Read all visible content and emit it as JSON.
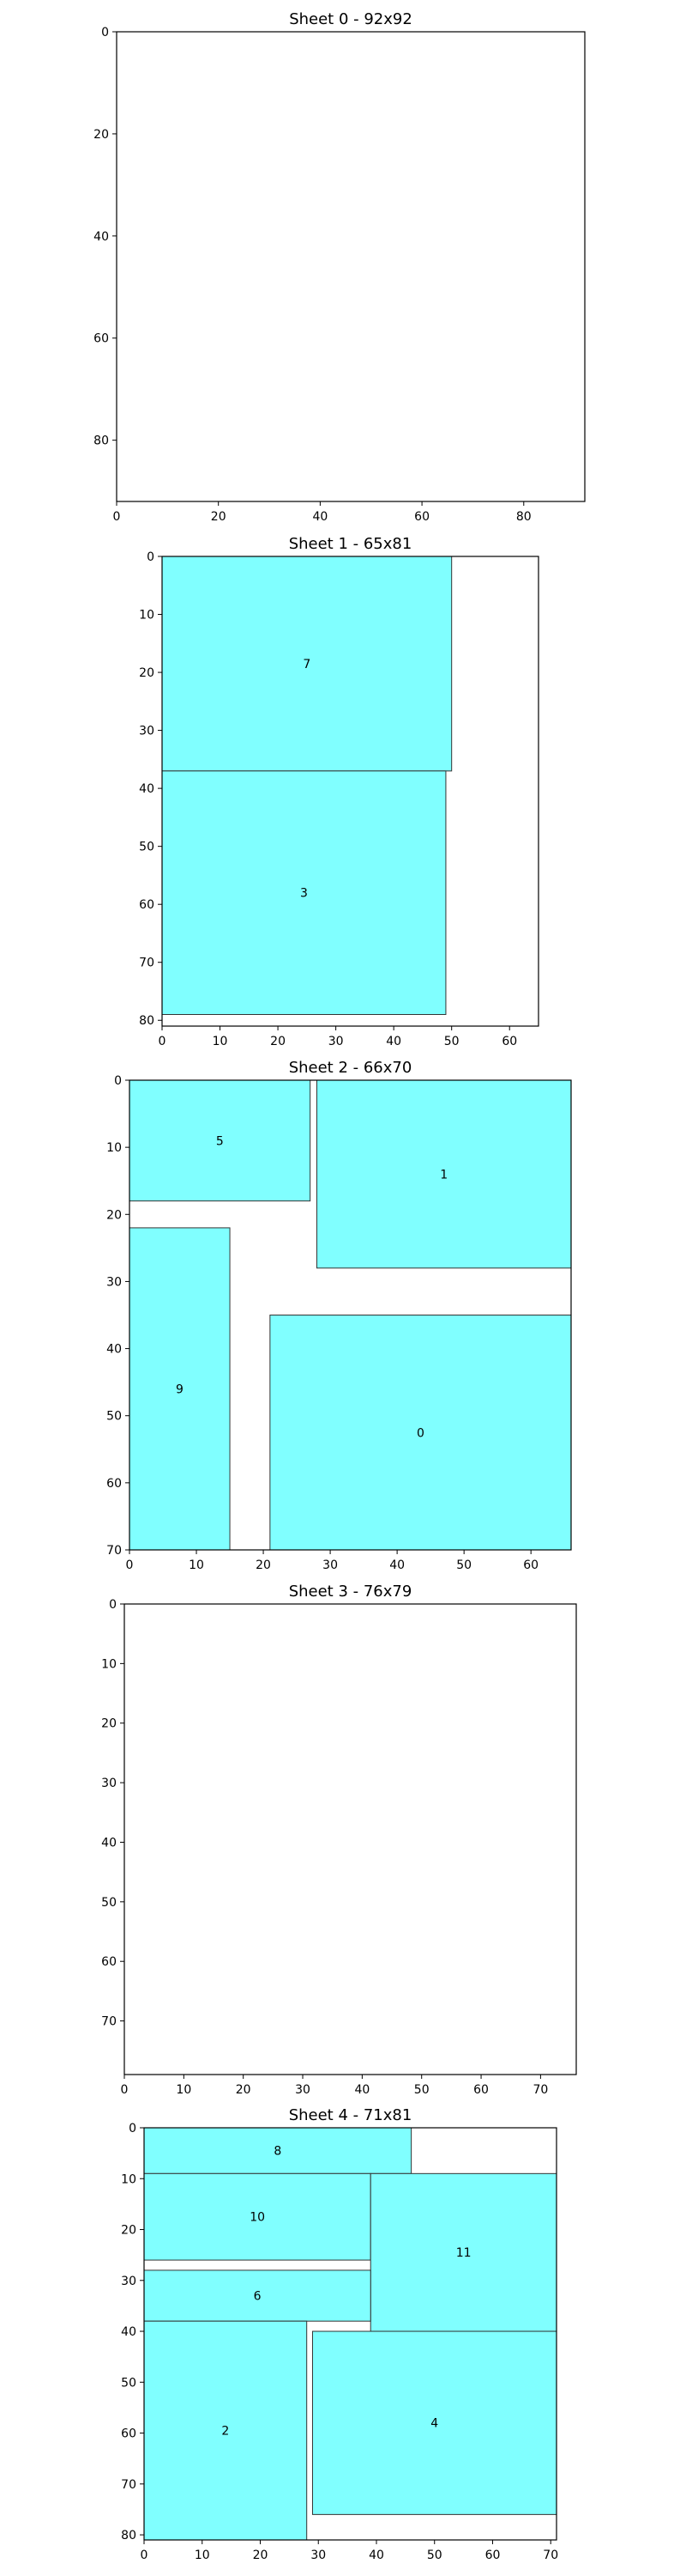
{
  "chart_data": [
    {
      "type": "rectangle-packing",
      "title": "Sheet 0 - 92x92",
      "xlim": [
        0,
        92
      ],
      "ylim": [
        0,
        92
      ],
      "y_inverted": true,
      "xticks": [
        0,
        20,
        40,
        60,
        80
      ],
      "yticks": [
        0,
        20,
        40,
        60,
        80
      ],
      "fill_color": "#80ffff",
      "pieces": []
    },
    {
      "type": "rectangle-packing",
      "title": "Sheet 1 - 65x81",
      "xlim": [
        0,
        65
      ],
      "ylim": [
        0,
        81
      ],
      "y_inverted": true,
      "xticks": [
        0,
        10,
        20,
        30,
        40,
        50,
        60
      ],
      "yticks": [
        0,
        10,
        20,
        30,
        40,
        50,
        60,
        70,
        80
      ],
      "fill_color": "#80ffff",
      "pieces": [
        {
          "label": "7",
          "x0": 0,
          "y0": 0,
          "x1": 50,
          "y1": 37
        },
        {
          "label": "3",
          "x0": 0,
          "y0": 37,
          "x1": 49,
          "y1": 79
        }
      ]
    },
    {
      "type": "rectangle-packing",
      "title": "Sheet 2 - 66x70",
      "xlim": [
        0,
        66
      ],
      "ylim": [
        0,
        70
      ],
      "y_inverted": true,
      "xticks": [
        0,
        10,
        20,
        30,
        40,
        50,
        60
      ],
      "yticks": [
        0,
        10,
        20,
        30,
        40,
        50,
        60,
        70
      ],
      "fill_color": "#80ffff",
      "pieces": [
        {
          "label": "5",
          "x0": 0,
          "y0": 0,
          "x1": 27,
          "y1": 18
        },
        {
          "label": "1",
          "x0": 28,
          "y0": 0,
          "x1": 66,
          "y1": 28
        },
        {
          "label": "9",
          "x0": 0,
          "y0": 22,
          "x1": 15,
          "y1": 70
        },
        {
          "label": "0",
          "x0": 21,
          "y0": 35,
          "x1": 66,
          "y1": 70
        }
      ]
    },
    {
      "type": "rectangle-packing",
      "title": "Sheet 3 - 76x79",
      "xlim": [
        0,
        76
      ],
      "ylim": [
        0,
        79
      ],
      "y_inverted": true,
      "xticks": [
        0,
        10,
        20,
        30,
        40,
        50,
        60,
        70
      ],
      "yticks": [
        0,
        10,
        20,
        30,
        40,
        50,
        60,
        70
      ],
      "fill_color": "#80ffff",
      "pieces": []
    },
    {
      "type": "rectangle-packing",
      "title": "Sheet 4 - 71x81",
      "xlim": [
        0,
        71
      ],
      "ylim": [
        0,
        81
      ],
      "y_inverted": true,
      "xticks": [
        0,
        10,
        20,
        30,
        40,
        50,
        60,
        70
      ],
      "yticks": [
        0,
        10,
        20,
        30,
        40,
        50,
        60,
        70,
        80
      ],
      "fill_color": "#80ffff",
      "pieces": [
        {
          "label": "8",
          "x0": 0,
          "y0": 0,
          "x1": 46,
          "y1": 9
        },
        {
          "label": "10",
          "x0": 0,
          "y0": 9,
          "x1": 39,
          "y1": 26
        },
        {
          "label": "11",
          "x0": 39,
          "y0": 9,
          "x1": 71,
          "y1": 40
        },
        {
          "label": "6",
          "x0": 0,
          "y0": 28,
          "x1": 39,
          "y1": 38
        },
        {
          "label": "2",
          "x0": 0,
          "y0": 38,
          "x1": 28,
          "y1": 81
        },
        {
          "label": "4",
          "x0": 29,
          "y0": 40,
          "x1": 71,
          "y1": 76
        }
      ]
    }
  ]
}
